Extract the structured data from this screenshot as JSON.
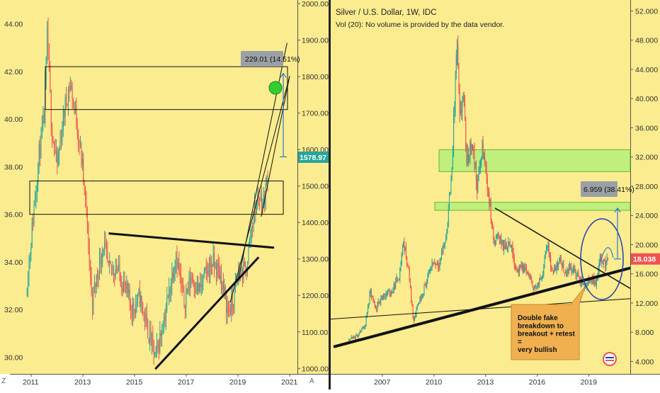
{
  "colors": {
    "background": "#fbec8f",
    "up": "#26a69a",
    "down": "#ef5350",
    "price_tag_left": "#26a69a",
    "price_tag_right": "#ef5350",
    "zone_fill": "#b6f07a",
    "zone_stroke": "#4caf20",
    "ellipse": "#1e3fb4",
    "measure": "#2a7bd5",
    "callout": "#f0b050",
    "green_dot": "#33cc33"
  },
  "chart_data": [
    {
      "id": "left",
      "type": "candlestick",
      "title": "",
      "x_axis": {
        "ticks": [
          "2011",
          "2013",
          "2015",
          "2017",
          "2019",
          "2021"
        ]
      },
      "y_axis_left": {
        "ticks": [
          "30.00",
          "32.00",
          "34.00",
          "36.00",
          "38.00",
          "40.00",
          "42.00",
          "44.00"
        ],
        "range": [
          29.3,
          45.0
        ]
      },
      "y_axis_right": {
        "ticks": [
          "1000.00",
          "1100.00",
          "1200.00",
          "1300.00",
          "1400.00",
          "1500.00",
          "1600.00",
          "1700.00",
          "1800.00",
          "1900.00",
          "2000.00"
        ],
        "range": [
          985,
          2010
        ]
      },
      "price_tag": "1578.97",
      "measure_label": "229.01 (14.51%)",
      "corner_label": "Z",
      "axis_corner_label": "A",
      "series_price_path": [
        [
          2010.8,
          32.7
        ],
        [
          2011.0,
          35.0
        ],
        [
          2011.3,
          38.5
        ],
        [
          2011.5,
          40.0
        ],
        [
          2011.62,
          43.5
        ],
        [
          2011.8,
          39.5
        ],
        [
          2012.0,
          38.0
        ],
        [
          2012.3,
          40.5
        ],
        [
          2012.5,
          41.5
        ],
        [
          2012.75,
          40.0
        ],
        [
          2013.0,
          37.8
        ],
        [
          2013.2,
          35.0
        ],
        [
          2013.35,
          32.3
        ],
        [
          2013.6,
          33.7
        ],
        [
          2013.8,
          34.8
        ],
        [
          2014.0,
          33.6
        ],
        [
          2014.3,
          33.8
        ],
        [
          2014.6,
          33.0
        ],
        [
          2014.9,
          32.0
        ],
        [
          2015.2,
          32.5
        ],
        [
          2015.5,
          31.2
        ],
        [
          2015.8,
          30.0
        ],
        [
          2016.0,
          30.9
        ],
        [
          2016.3,
          32.5
        ],
        [
          2016.6,
          34.4
        ],
        [
          2016.9,
          32.3
        ],
        [
          2017.2,
          33.4
        ],
        [
          2017.5,
          32.8
        ],
        [
          2017.8,
          33.6
        ],
        [
          2018.0,
          34.0
        ],
        [
          2018.3,
          33.5
        ],
        [
          2018.6,
          32.0
        ],
        [
          2018.8,
          32.2
        ],
        [
          2019.0,
          33.5
        ],
        [
          2019.3,
          33.6
        ],
        [
          2019.6,
          36.0
        ],
        [
          2019.8,
          36.8
        ],
        [
          2020.0,
          36.5
        ],
        [
          2020.15,
          37.7
        ]
      ]
    },
    {
      "id": "right",
      "type": "candlestick",
      "title": "Silver / U.S. Dollar, 1W, IDC",
      "subtitle": "Vol (20): No volume is provided by the data vendor.",
      "x_axis": {
        "ticks": [
          "2007",
          "2010",
          "2013",
          "2016",
          "2019"
        ]
      },
      "y_axis": {
        "ticks": [
          "4.000",
          "8.000",
          "12.000",
          "16.000",
          "20.000",
          "24.000",
          "28.000",
          "32.000",
          "36.000",
          "40.000",
          "44.000",
          "48.000",
          "52.000"
        ],
        "range": [
          2.3,
          53.5
        ]
      },
      "price_tag": "18.038",
      "measure_label": "6.959 (38.41%)",
      "annotation": [
        "Double fake",
        "breakdown to",
        "breakout + retest",
        "=",
        "very bullish"
      ],
      "series_price_path": [
        [
          2005.0,
          7.0
        ],
        [
          2005.5,
          7.4
        ],
        [
          2006.0,
          9.0
        ],
        [
          2006.3,
          13.5
        ],
        [
          2006.6,
          11.0
        ],
        [
          2007.0,
          13.0
        ],
        [
          2007.5,
          13.5
        ],
        [
          2008.0,
          16.0
        ],
        [
          2008.2,
          20.5
        ],
        [
          2008.5,
          17.0
        ],
        [
          2008.8,
          9.5
        ],
        [
          2009.0,
          11.5
        ],
        [
          2009.5,
          14.5
        ],
        [
          2009.9,
          17.5
        ],
        [
          2010.3,
          17.5
        ],
        [
          2010.7,
          21.0
        ],
        [
          2011.0,
          29.0
        ],
        [
          2011.2,
          40.0
        ],
        [
          2011.32,
          48.0
        ],
        [
          2011.5,
          36.5
        ],
        [
          2011.7,
          41.0
        ],
        [
          2011.9,
          31.0
        ],
        [
          2012.2,
          34.5
        ],
        [
          2012.5,
          28.0
        ],
        [
          2012.8,
          33.0
        ],
        [
          2013.0,
          30.5
        ],
        [
          2013.3,
          24.0
        ],
        [
          2013.5,
          20.0
        ],
        [
          2013.8,
          21.5
        ],
        [
          2014.0,
          19.5
        ],
        [
          2014.4,
          20.5
        ],
        [
          2014.8,
          16.5
        ],
        [
          2015.3,
          16.8
        ],
        [
          2015.7,
          14.5
        ],
        [
          2015.95,
          13.9
        ],
        [
          2016.3,
          16.0
        ],
        [
          2016.55,
          20.5
        ],
        [
          2016.9,
          16.0
        ],
        [
          2017.3,
          18.0
        ],
        [
          2017.6,
          16.3
        ],
        [
          2018.0,
          16.9
        ],
        [
          2018.5,
          15.0
        ],
        [
          2018.8,
          14.3
        ],
        [
          2019.1,
          15.5
        ],
        [
          2019.4,
          14.8
        ],
        [
          2019.7,
          18.5
        ],
        [
          2019.9,
          17.2
        ],
        [
          2020.1,
          18.0
        ]
      ]
    }
  ]
}
